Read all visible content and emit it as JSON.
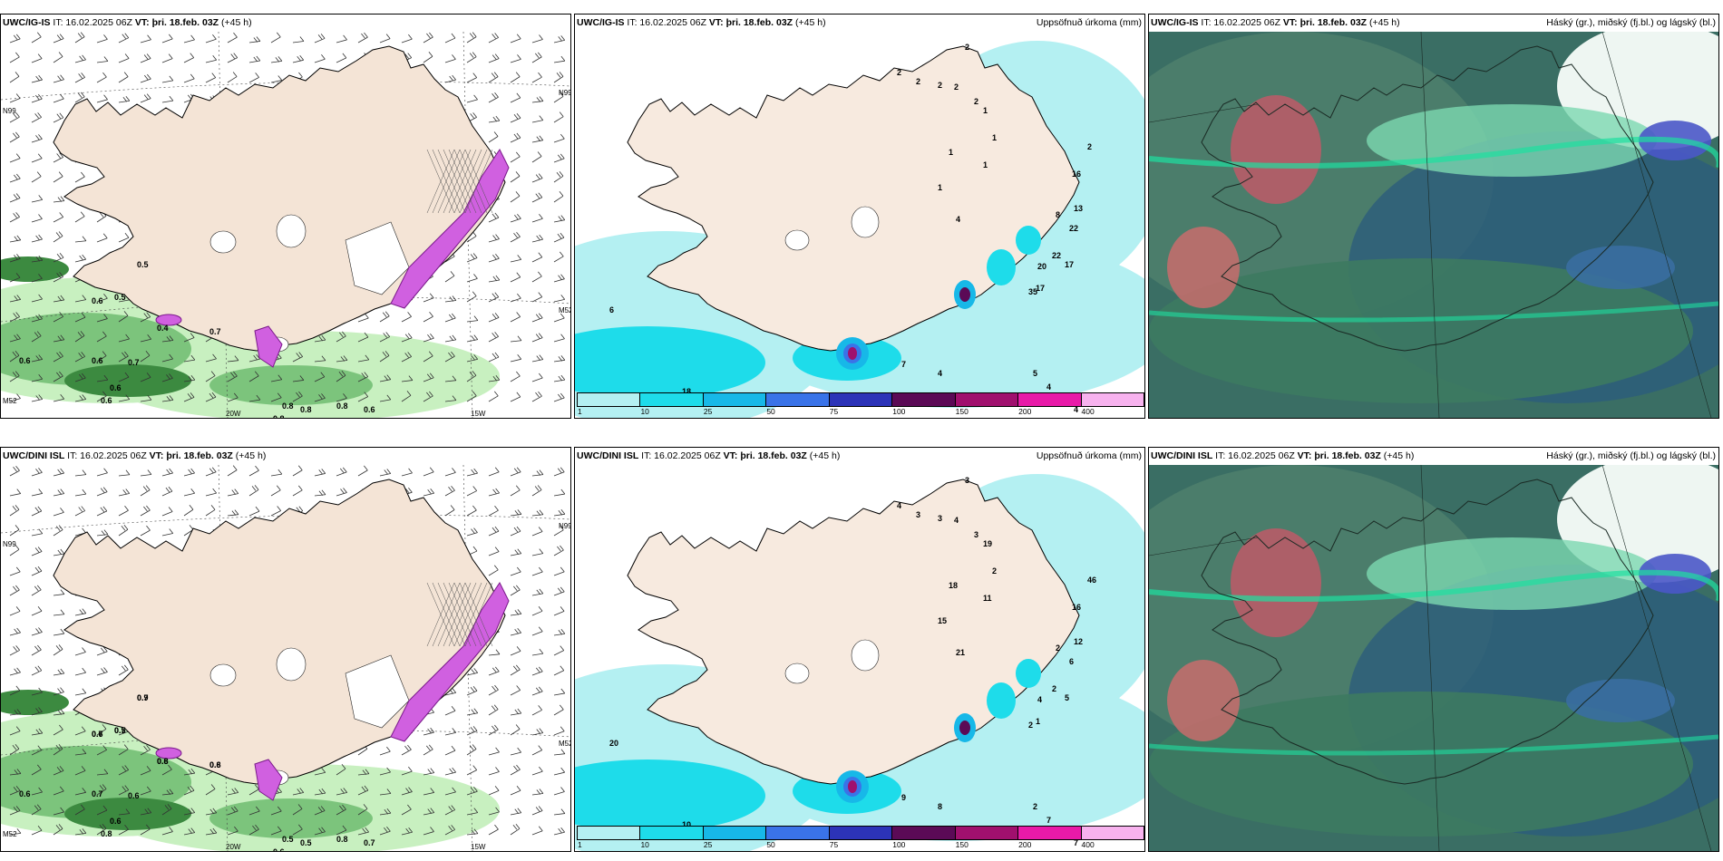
{
  "rows": [
    {
      "panels": [
        {
          "id": "wind",
          "title_bold": "UWC/IG-IS",
          "title_rest": " IT: 16.02.2025 06Z ",
          "vt_bold": "VT: þri. 18.feb. 03Z",
          "vt_rest": " (+45 h)",
          "variable": "",
          "labels": [
            "0.5",
            "0.6",
            "0.5",
            "0.4",
            "0.7",
            "0.6",
            "0.6",
            "0.7",
            "0.6",
            "0.6",
            "0.8",
            "0.8",
            "0.8",
            "0.6",
            "0.8"
          ],
          "axes": [
            "N99",
            "N99",
            "M52",
            "M52",
            "20W",
            "15W"
          ]
        },
        {
          "id": "precip",
          "title_bold": "UWC/IG-IS",
          "title_rest": " IT: 16.02.2025 06Z ",
          "vt_bold": "VT: þri. 18.feb. 03Z",
          "vt_rest": " (+45 h)",
          "variable": "Uppsöfnuð úrkoma (mm)",
          "labels": [
            "2",
            "2",
            "2",
            "1",
            "2",
            "2",
            "2",
            "1",
            "1",
            "1",
            "1",
            "16",
            "2",
            "13",
            "22",
            "17",
            "22",
            "20",
            "35",
            "17",
            "8",
            "4",
            "6",
            "1",
            "18",
            "18",
            "7",
            "4",
            "4",
            "4",
            "2",
            "3",
            "5"
          ]
        },
        {
          "id": "cloud",
          "title_bold": "UWC/IG-IS",
          "title_rest": " IT: 16.02.2025 06Z ",
          "vt_bold": "VT: þri. 18.feb. 03Z",
          "vt_rest": " (+45 h)",
          "variable": "Háský (gr.), miðský (fj.bl.) og lágský (bl.)"
        }
      ]
    },
    {
      "panels": [
        {
          "id": "wind",
          "title_bold": "UWC/DINI ISL",
          "title_rest": " IT: 16.02.2025 06Z ",
          "vt_bold": "VT: þri. 18.feb. 03Z",
          "vt_rest": " (+45 h)",
          "variable": "",
          "labels": [
            "0.7",
            "0.6",
            "0.5",
            "0.6",
            "0.6",
            "0.6",
            "0.7",
            "0.6",
            "0.6",
            "0.8",
            "0.5",
            "0.5",
            "0.8",
            "0.7",
            "0.6",
            "0.9",
            "0.7",
            "0.7",
            "0.8",
            "0.8"
          ],
          "axes": [
            "N99",
            "N99",
            "M52",
            "M52",
            "20W",
            "15W"
          ]
        },
        {
          "id": "precip",
          "title_bold": "UWC/DINI ISL",
          "title_rest": " IT: 16.02.2025 06Z ",
          "vt_bold": "VT: þri. 18.feb. 03Z",
          "vt_rest": " (+45 h)",
          "variable": "Uppsöfnuð úrkoma (mm)",
          "labels": [
            "3",
            "4",
            "3",
            "2",
            "4",
            "3",
            "3",
            "19",
            "18",
            "11",
            "15",
            "16",
            "46",
            "12",
            "6",
            "5",
            "2",
            "4",
            "2",
            "1",
            "2",
            "21",
            "20",
            "21",
            "21",
            "10",
            "9",
            "8",
            "7",
            "7",
            "8",
            "3",
            "2"
          ]
        },
        {
          "id": "cloud",
          "title_bold": "UWC/DINI ISL",
          "title_rest": " IT: 16.02.2025 06Z ",
          "vt_bold": "VT: þri. 18.feb. 03Z",
          "vt_rest": " (+45 h)",
          "variable": "Háský (gr.), miðský (fj.bl.) og lágský (bl.)"
        }
      ]
    }
  ],
  "legend": {
    "labels": [
      "1",
      "10",
      "25",
      "50",
      "75",
      "100",
      "150",
      "200",
      "400"
    ],
    "colors": [
      "#b4f0f2",
      "#1edcea",
      "#17b8e8",
      "#3a73e8",
      "#2c33b8",
      "#5b0a56",
      "#a0106e",
      "#e81aa8",
      "#f7b2ee"
    ]
  },
  "colors": {
    "land": "#f4e4d6",
    "precip_light": "#b4f0f2",
    "green_dark": "#3c8a40",
    "green_light": "#c8f0c0",
    "magenta": "#d060e0",
    "cloud_base": "#3a6e64"
  }
}
